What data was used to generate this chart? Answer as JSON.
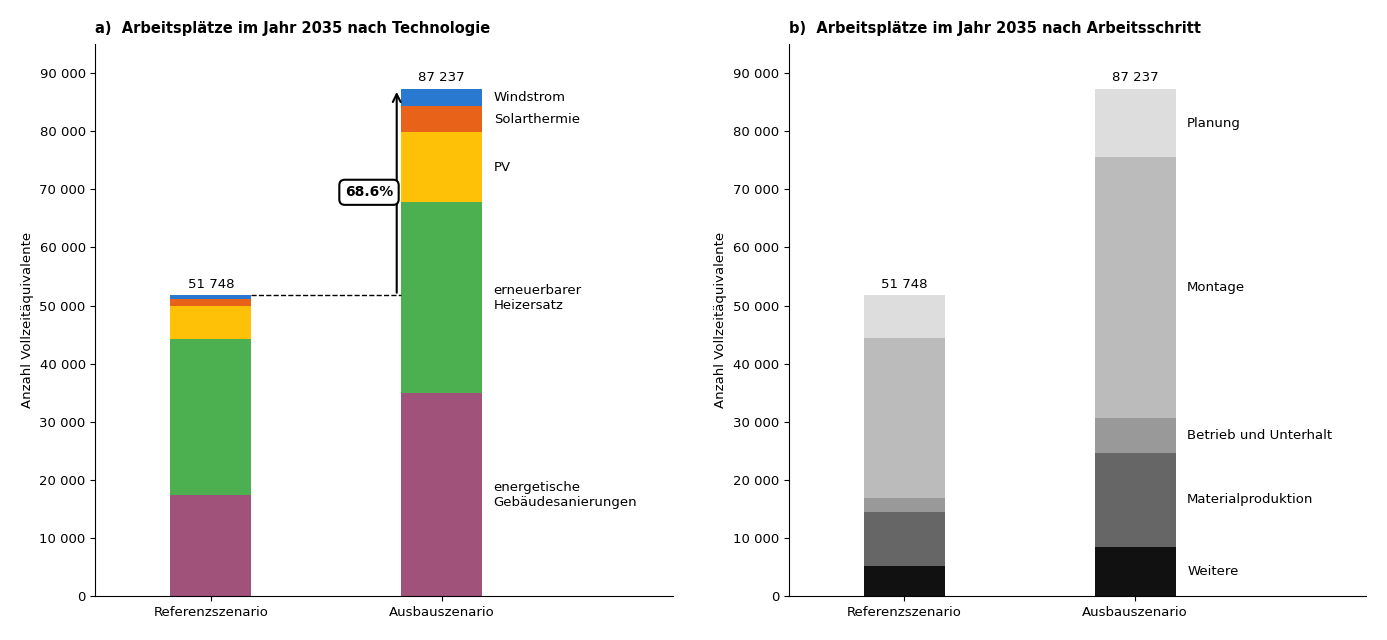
{
  "title_a": "a)  Arbeitsplätze im Jahr 2035 nach Technologie",
  "title_b": "b)  Arbeitsplätze im Jahr 2035 nach Arbeitsschritt",
  "ylabel": "Anzahl Vollzeitäquivalente",
  "categories": [
    "Referenzszenario",
    "Ausbauszenario"
  ],
  "total_ref": 51748,
  "total_aus": 87237,
  "total_ref_label": "51 748",
  "total_aus_label": "87 237",
  "pct_label": "68.6%",
  "tech_labels": [
    "energetische\nGebäudesanierungen",
    "erneuerbarer\nHeizersatz",
    "PV",
    "Solarthermie",
    "Windstrom"
  ],
  "tech_colors": [
    "#A0527A",
    "#4CAF50",
    "#FFC107",
    "#E8621A",
    "#2979D0"
  ],
  "tech_ref": [
    17500,
    26800,
    5700,
    1200,
    548
  ],
  "tech_aus": [
    35000,
    32800,
    12000,
    4500,
    2937
  ],
  "work_labels": [
    "Weitere",
    "Materialproduktion",
    "Betrieb und Unterhalt",
    "Montage",
    "Planung"
  ],
  "work_colors": [
    "#111111",
    "#666666",
    "#999999",
    "#BBBBBB",
    "#DDDDDD"
  ],
  "work_ref": [
    5200,
    9300,
    2500,
    27500,
    7248
  ],
  "work_aus": [
    8500,
    16200,
    6000,
    44800,
    11737
  ],
  "ylim": [
    0,
    95000
  ],
  "yticks": [
    0,
    10000,
    20000,
    30000,
    40000,
    50000,
    60000,
    70000,
    80000,
    90000
  ],
  "ytick_labels": [
    "0",
    "10 000",
    "20 000",
    "30 000",
    "40 000",
    "50 000",
    "60 000",
    "70 000",
    "80 000",
    "90 000"
  ]
}
